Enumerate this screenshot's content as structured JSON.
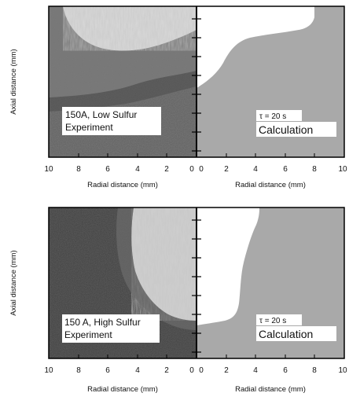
{
  "figure": {
    "panels": [
      {
        "experiment_label_line1": "150A, Low Sulfur",
        "experiment_label_line2": "Experiment",
        "calc_tau": "τ = 20 s",
        "calc_label": "Calculation",
        "y_axis_title": "Axial distance (mm)",
        "x_axis_title_left": "Radial distance (mm)",
        "x_axis_title_right": "Radial distance (mm)",
        "x_ticks_left": [
          "10",
          "8",
          "6",
          "4",
          "2",
          "0"
        ],
        "x_ticks_right": [
          "0",
          "2",
          "4",
          "6",
          "8",
          "10"
        ]
      },
      {
        "experiment_label_line1": "150 A, High Sulfur",
        "experiment_label_line2": "Experiment",
        "calc_tau": "τ = 20 s",
        "calc_label": "Calculation",
        "y_axis_title": "Axial distance (mm)",
        "x_axis_title_left": "Radial distance (mm)",
        "x_axis_title_right": "Radial distance (mm)",
        "x_ticks_left": [
          "10",
          "8",
          "6",
          "4",
          "2",
          "0"
        ],
        "x_ticks_right": [
          "0",
          "2",
          "4",
          "6",
          "8",
          "10"
        ]
      }
    ],
    "colors": {
      "calc_fill": "#a9a9a9",
      "frame": "#000000",
      "background": "#ffffff"
    }
  }
}
